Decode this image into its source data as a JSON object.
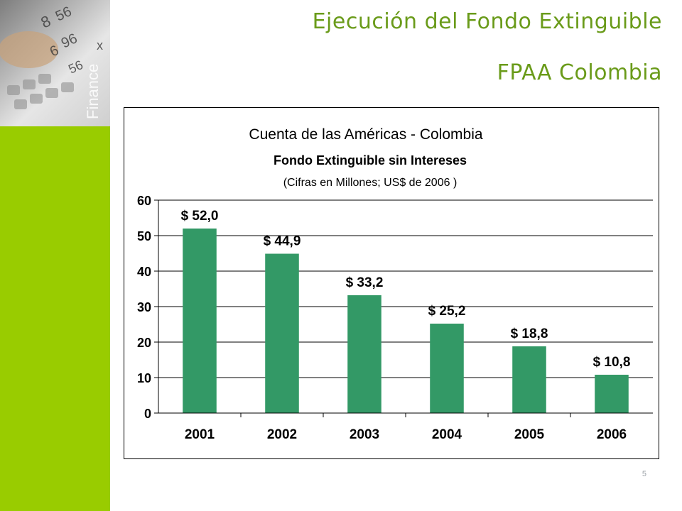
{
  "slide": {
    "title_line1": "Ejecución del Fondo Extinguible",
    "title_line2": "FPAA Colombia",
    "page_number": "5",
    "accent_color": "#99cc00",
    "title_color": "#6a9b1a"
  },
  "decoration": {
    "photo_text": "Finance",
    "photo_digits": [
      "8",
      "56",
      "x",
      "6",
      "96",
      "56"
    ]
  },
  "chart_data": {
    "type": "bar",
    "title": "Cuenta de las Américas - Colombia",
    "subtitle": "Fondo Extinguible sin Intereses",
    "subtitle2": "(Cifras en Millones; US$ de 2006 )",
    "categories": [
      "2001",
      "2002",
      "2003",
      "2004",
      "2005",
      "2006"
    ],
    "values": [
      52.0,
      44.9,
      33.2,
      25.2,
      18.8,
      10.8
    ],
    "data_labels": [
      "$ 52,0",
      "$ 44,9",
      "$ 33,2",
      "$ 25,2",
      "$ 18,8",
      "$ 10,8"
    ],
    "ylim": [
      0,
      60
    ],
    "yticks": [
      0,
      10,
      20,
      30,
      40,
      50,
      60
    ],
    "bar_color": "#339966",
    "grid": true,
    "legend": "none"
  }
}
